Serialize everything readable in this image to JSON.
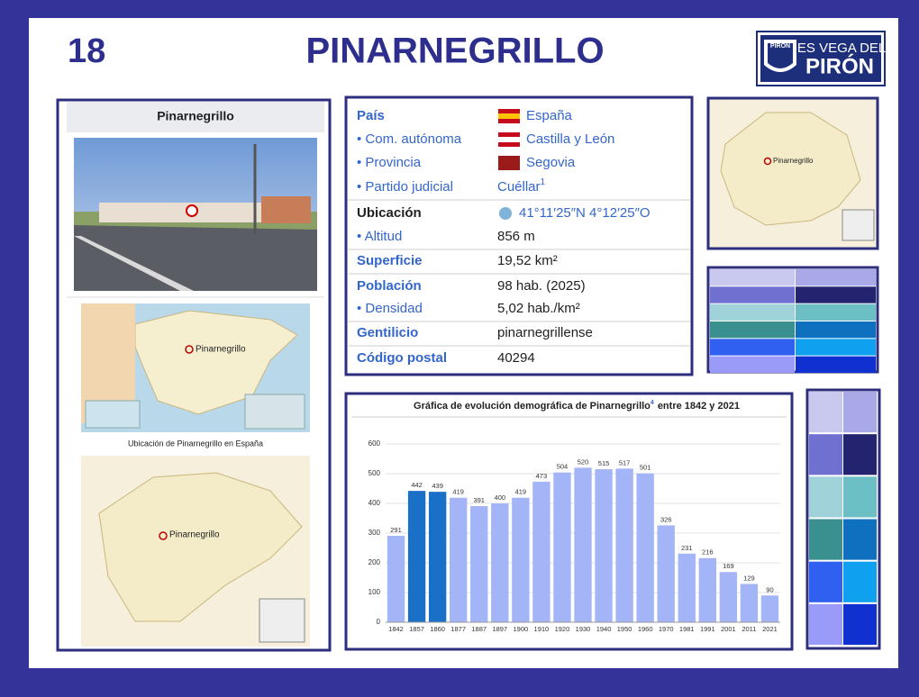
{
  "header": {
    "number": "18",
    "title": "PINARNEGRILLO",
    "logo": {
      "badge": "PIRON",
      "line1": "IES VEGA DEL",
      "line2": "PIRÓN"
    }
  },
  "infobox": {
    "title": "Pinarnegrillo",
    "map_label": "Pinarnegrillo",
    "map_caption": "Ubicación de Pinarnegrillo en España",
    "province_map_label": "Pinarnegrillo",
    "rows": [
      {
        "label": "País",
        "value": "España"
      },
      {
        "label": "• Com. autónoma",
        "value": "Castilla y León"
      },
      {
        "label": "• Provincia",
        "value": "Segovia"
      },
      {
        "label": "• Partido judicial",
        "value": "Cuéllar",
        "ref": "1"
      },
      {
        "label": "Ubicación",
        "value": "41°11′25″N 4°12′25″O"
      },
      {
        "label": "• Altitud",
        "value": "856 m"
      },
      {
        "label": "Superficie",
        "value": "19,52 km²"
      },
      {
        "label": "Población",
        "value": "98 hab. (2025)"
      },
      {
        "label": "• Densidad",
        "value": "5,02 hab./km²"
      },
      {
        "label": "Gentilicio",
        "value": "pinarnegrillense"
      },
      {
        "label": "Código postal",
        "value": "40294"
      }
    ]
  },
  "side_map": {
    "label": "Pinarnegrillo"
  },
  "chart_data": {
    "type": "bar",
    "title": "Gráfica de evolución demográfica de Pinarnegrillo",
    "title_ref": "4",
    "title_end": "entre 1842 y 2021",
    "categories": [
      "1842",
      "1857",
      "1860",
      "1877",
      "1887",
      "1897",
      "1900",
      "1910",
      "1920",
      "1930",
      "1940",
      "1950",
      "1960",
      "1970",
      "1981",
      "1991",
      "2001",
      "2011",
      "2021"
    ],
    "values": [
      291,
      442,
      439,
      419,
      391,
      400,
      419,
      473,
      504,
      520,
      515,
      517,
      501,
      326,
      231,
      216,
      169,
      129,
      90
    ],
    "colors": [
      "#a3b5f7",
      "#1a6fc7",
      "#1a6fc7",
      "#a3b5f7",
      "#a3b5f7",
      "#a3b5f7",
      "#a3b5f7",
      "#a3b5f7",
      "#a3b5f7",
      "#a3b5f7",
      "#a3b5f7",
      "#a3b5f7",
      "#a3b5f7",
      "#a3b5f7",
      "#a3b5f7",
      "#a3b5f7",
      "#a3b5f7",
      "#a3b5f7",
      "#a3b5f7"
    ],
    "ylim": [
      0,
      600
    ],
    "yticks": [
      0,
      100,
      200,
      300,
      400,
      500,
      600
    ],
    "grid": true
  }
}
